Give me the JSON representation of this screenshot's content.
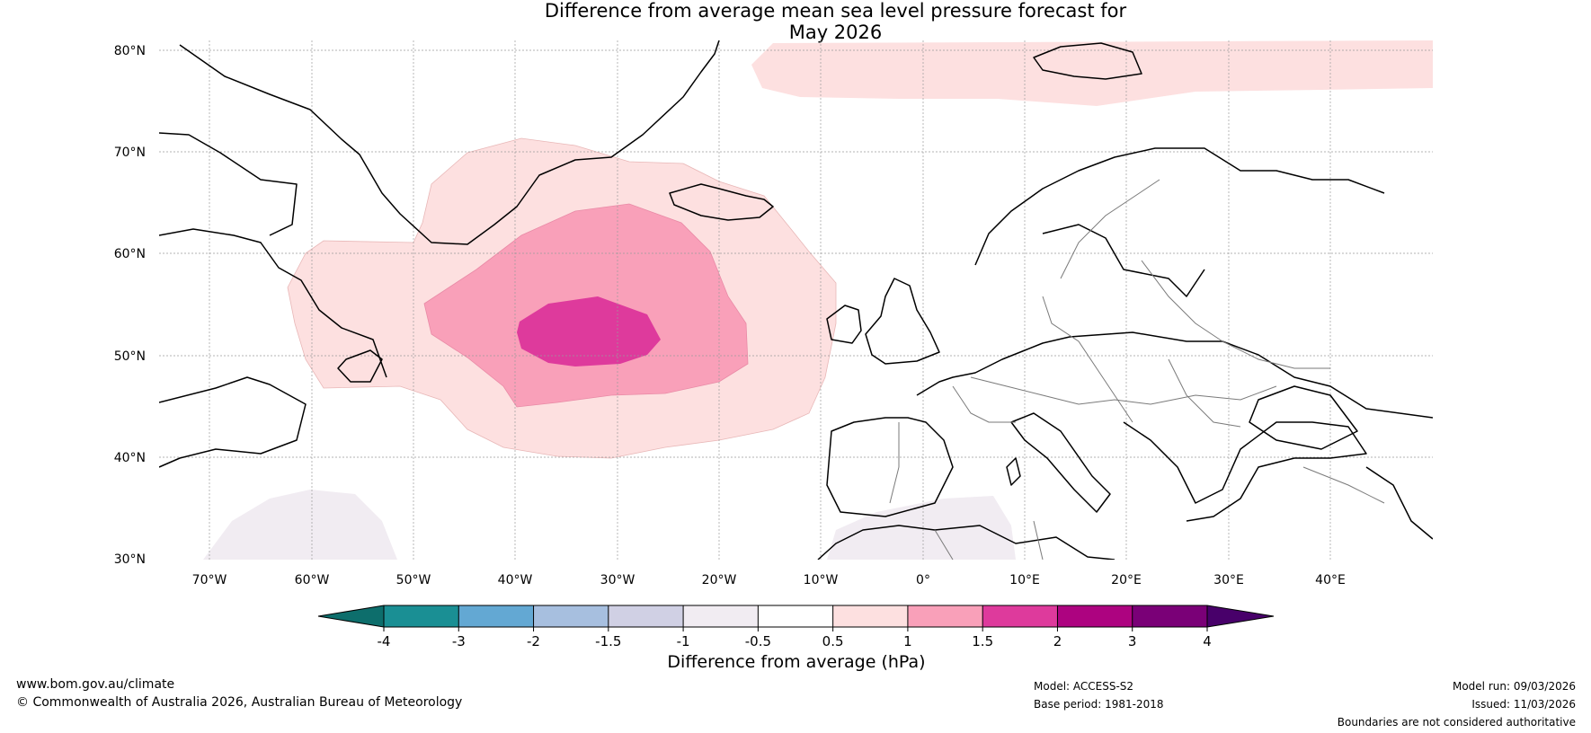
{
  "title": {
    "line1": "Difference from average mean sea level pressure forecast for",
    "line2": "May 2026"
  },
  "map": {
    "lat_ticks": [
      "80°N",
      "70°N",
      "60°N",
      "50°N",
      "40°N",
      "30°N"
    ],
    "lon_ticks": [
      "70°W",
      "60°W",
      "50°W",
      "40°W",
      "30°W",
      "20°W",
      "10°W",
      "0°",
      "10°E",
      "20°E",
      "30°E",
      "40°E"
    ],
    "extent": {
      "lon": [
        -75,
        50
      ],
      "lat": [
        30,
        81
      ]
    }
  },
  "colorbar": {
    "title": "Difference from average (hPa)",
    "labels": [
      "-4",
      "-3",
      "-2",
      "-1.5",
      "-1",
      "-0.5",
      "0.5",
      "1",
      "1.5",
      "2",
      "3",
      "4"
    ],
    "colors": [
      "#1a8f94",
      "#63a8d3",
      "#a7bfdf",
      "#d0d0e4",
      "#f1ecf2",
      "#ffffff",
      "#fde0e0",
      "#f9a0b9",
      "#de3a9c",
      "#ad0380",
      "#7a0077"
    ],
    "under_color": "#0d6e6c",
    "over_color": "#48006a"
  },
  "footer": {
    "url": "www.bom.gov.au/climate",
    "copyright": "© Commonwealth of Australia 2026, Australian Bureau of Meteorology",
    "model": "Model: ACCESS-S2",
    "base_period": "Base period: 1981-2018",
    "model_run": "Model run: 09/03/2026",
    "issued": "Issued: 11/03/2026",
    "disclaimer": "Boundaries are not considered authoritative"
  }
}
